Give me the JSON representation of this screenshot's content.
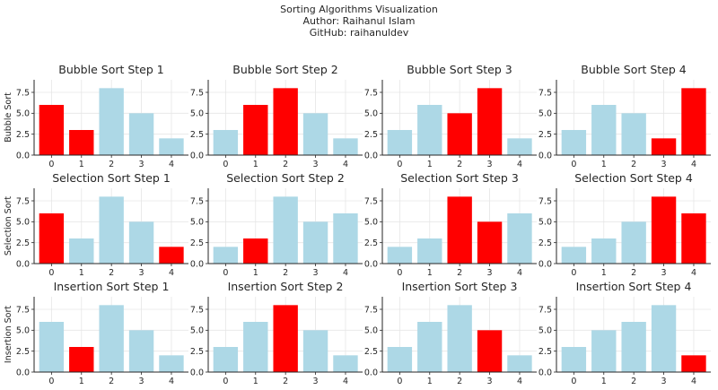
{
  "figure": {
    "title_lines": [
      "Sorting Algorithms Visualization",
      "Author: Raihanul Islam",
      "GitHub: raihanuldev"
    ]
  },
  "colors": {
    "normal": "#add8e6",
    "highlight": "#ff0000",
    "grid": "#e6e6e6",
    "axis": "#262626"
  },
  "chart_data": [
    {
      "type": "bar",
      "title": "Bubble Sort Step 1",
      "ylabel": "Bubble Sort",
      "categories": [
        "0",
        "1",
        "2",
        "3",
        "4"
      ],
      "values": [
        6,
        3,
        8,
        5,
        2
      ],
      "highlight": [
        0,
        1
      ],
      "ylim": [
        0,
        9
      ],
      "yticks": [
        "0.0",
        "2.5",
        "5.0",
        "7.5"
      ],
      "grid": true
    },
    {
      "type": "bar",
      "title": "Bubble Sort Step 2",
      "ylabel": "",
      "categories": [
        "0",
        "1",
        "2",
        "3",
        "4"
      ],
      "values": [
        3,
        6,
        8,
        5,
        2
      ],
      "highlight": [
        1,
        2
      ],
      "ylim": [
        0,
        9
      ],
      "yticks": [
        "0.0",
        "2.5",
        "5.0",
        "7.5"
      ],
      "grid": true
    },
    {
      "type": "bar",
      "title": "Bubble Sort Step 3",
      "ylabel": "",
      "categories": [
        "0",
        "1",
        "2",
        "3",
        "4"
      ],
      "values": [
        3,
        6,
        5,
        8,
        2
      ],
      "highlight": [
        2,
        3
      ],
      "ylim": [
        0,
        9
      ],
      "yticks": [
        "0.0",
        "2.5",
        "5.0",
        "7.5"
      ],
      "grid": true
    },
    {
      "type": "bar",
      "title": "Bubble Sort Step 4",
      "ylabel": "",
      "categories": [
        "0",
        "1",
        "2",
        "3",
        "4"
      ],
      "values": [
        3,
        6,
        5,
        2,
        8
      ],
      "highlight": [
        3,
        4
      ],
      "ylim": [
        0,
        9
      ],
      "yticks": [
        "0.0",
        "2.5",
        "5.0",
        "7.5"
      ],
      "grid": true
    },
    {
      "type": "bar",
      "title": "Selection Sort Step 1",
      "ylabel": "Selection Sort",
      "categories": [
        "0",
        "1",
        "2",
        "3",
        "4"
      ],
      "values": [
        6,
        3,
        8,
        5,
        2
      ],
      "highlight": [
        0,
        4
      ],
      "ylim": [
        0,
        9
      ],
      "yticks": [
        "0.0",
        "2.5",
        "5.0",
        "7.5"
      ],
      "grid": true
    },
    {
      "type": "bar",
      "title": "Selection Sort Step 2",
      "ylabel": "",
      "categories": [
        "0",
        "1",
        "2",
        "3",
        "4"
      ],
      "values": [
        2,
        3,
        8,
        5,
        6
      ],
      "highlight": [
        1
      ],
      "ylim": [
        0,
        9
      ],
      "yticks": [
        "0.0",
        "2.5",
        "5.0",
        "7.5"
      ],
      "grid": true
    },
    {
      "type": "bar",
      "title": "Selection Sort Step 3",
      "ylabel": "",
      "categories": [
        "0",
        "1",
        "2",
        "3",
        "4"
      ],
      "values": [
        2,
        3,
        8,
        5,
        6
      ],
      "highlight": [
        2,
        3
      ],
      "ylim": [
        0,
        9
      ],
      "yticks": [
        "0.0",
        "2.5",
        "5.0",
        "7.5"
      ],
      "grid": true
    },
    {
      "type": "bar",
      "title": "Selection Sort Step 4",
      "ylabel": "",
      "categories": [
        "0",
        "1",
        "2",
        "3",
        "4"
      ],
      "values": [
        2,
        3,
        5,
        8,
        6
      ],
      "highlight": [
        3,
        4
      ],
      "ylim": [
        0,
        9
      ],
      "yticks": [
        "0.0",
        "2.5",
        "5.0",
        "7.5"
      ],
      "grid": true
    },
    {
      "type": "bar",
      "title": "Insertion Sort Step 1",
      "ylabel": "Insertion Sort",
      "categories": [
        "0",
        "1",
        "2",
        "3",
        "4"
      ],
      "values": [
        6,
        3,
        8,
        5,
        2
      ],
      "highlight": [
        1
      ],
      "ylim": [
        0,
        9
      ],
      "yticks": [
        "0.0",
        "2.5",
        "5.0",
        "7.5"
      ],
      "grid": true
    },
    {
      "type": "bar",
      "title": "Insertion Sort Step 2",
      "ylabel": "",
      "categories": [
        "0",
        "1",
        "2",
        "3",
        "4"
      ],
      "values": [
        3,
        6,
        8,
        5,
        2
      ],
      "highlight": [
        2
      ],
      "ylim": [
        0,
        9
      ],
      "yticks": [
        "0.0",
        "2.5",
        "5.0",
        "7.5"
      ],
      "grid": true
    },
    {
      "type": "bar",
      "title": "Insertion Sort Step 3",
      "ylabel": "",
      "categories": [
        "0",
        "1",
        "2",
        "3",
        "4"
      ],
      "values": [
        3,
        6,
        8,
        5,
        2
      ],
      "highlight": [
        3
      ],
      "ylim": [
        0,
        9
      ],
      "yticks": [
        "0.0",
        "2.5",
        "5.0",
        "7.5"
      ],
      "grid": true
    },
    {
      "type": "bar",
      "title": "Insertion Sort Step 4",
      "ylabel": "",
      "categories": [
        "0",
        "1",
        "2",
        "3",
        "4"
      ],
      "values": [
        3,
        5,
        6,
        8,
        2
      ],
      "highlight": [
        4
      ],
      "ylim": [
        0,
        9
      ],
      "yticks": [
        "0.0",
        "2.5",
        "5.0",
        "7.5"
      ],
      "grid": true
    }
  ]
}
